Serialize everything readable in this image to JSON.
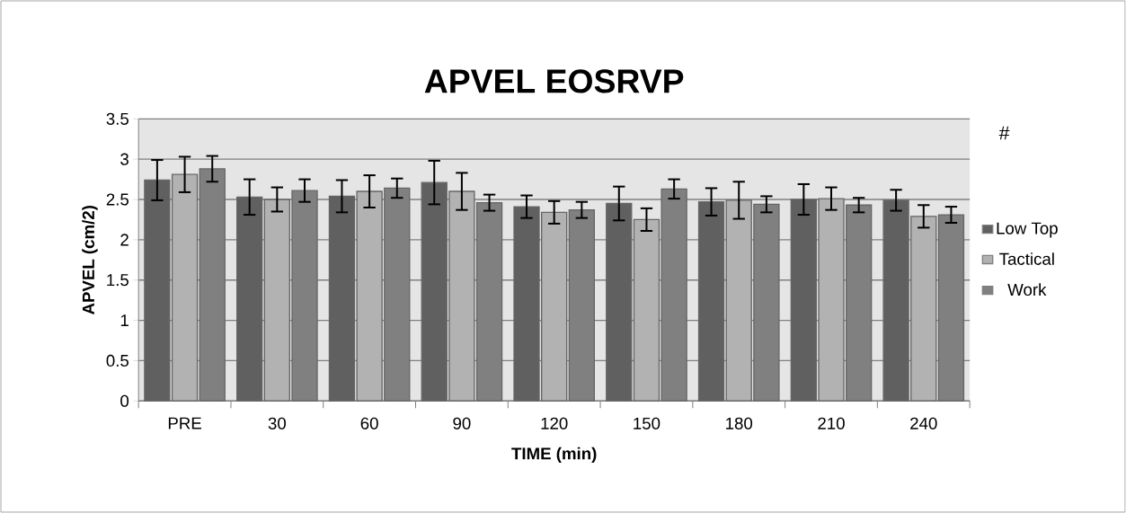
{
  "chart_data": {
    "type": "bar",
    "title": "APVEL EOSRVP",
    "xlabel": "TIME (min)",
    "ylabel": "APVEL (cm/2)",
    "categories": [
      "PRE",
      "30",
      "60",
      "90",
      "120",
      "150",
      "180",
      "210",
      "240"
    ],
    "series": [
      {
        "name": "Low Top",
        "color": "#606060",
        "values": [
          2.74,
          2.53,
          2.54,
          2.71,
          2.41,
          2.45,
          2.47,
          2.5,
          2.49
        ],
        "errors": [
          0.25,
          0.22,
          0.2,
          0.27,
          0.14,
          0.21,
          0.17,
          0.19,
          0.13
        ]
      },
      {
        "name": "Tactical",
        "color": "#b2b2b2",
        "values": [
          2.81,
          2.5,
          2.6,
          2.6,
          2.34,
          2.25,
          2.49,
          2.51,
          2.29
        ],
        "errors": [
          0.22,
          0.15,
          0.2,
          0.23,
          0.14,
          0.14,
          0.23,
          0.14,
          0.14
        ]
      },
      {
        "name": "Work",
        "color": "#808080",
        "values": [
          2.88,
          2.61,
          2.64,
          2.46,
          2.37,
          2.63,
          2.44,
          2.43,
          2.31
        ],
        "errors": [
          0.16,
          0.14,
          0.12,
          0.1,
          0.1,
          0.12,
          0.1,
          0.09,
          0.1
        ]
      }
    ],
    "ylim": [
      0,
      3.5
    ],
    "yticks": [
      0,
      0.5,
      1,
      1.5,
      2,
      2.5,
      3,
      3.5
    ],
    "grid": "y",
    "legend": "right",
    "annotations": [
      "#"
    ]
  }
}
